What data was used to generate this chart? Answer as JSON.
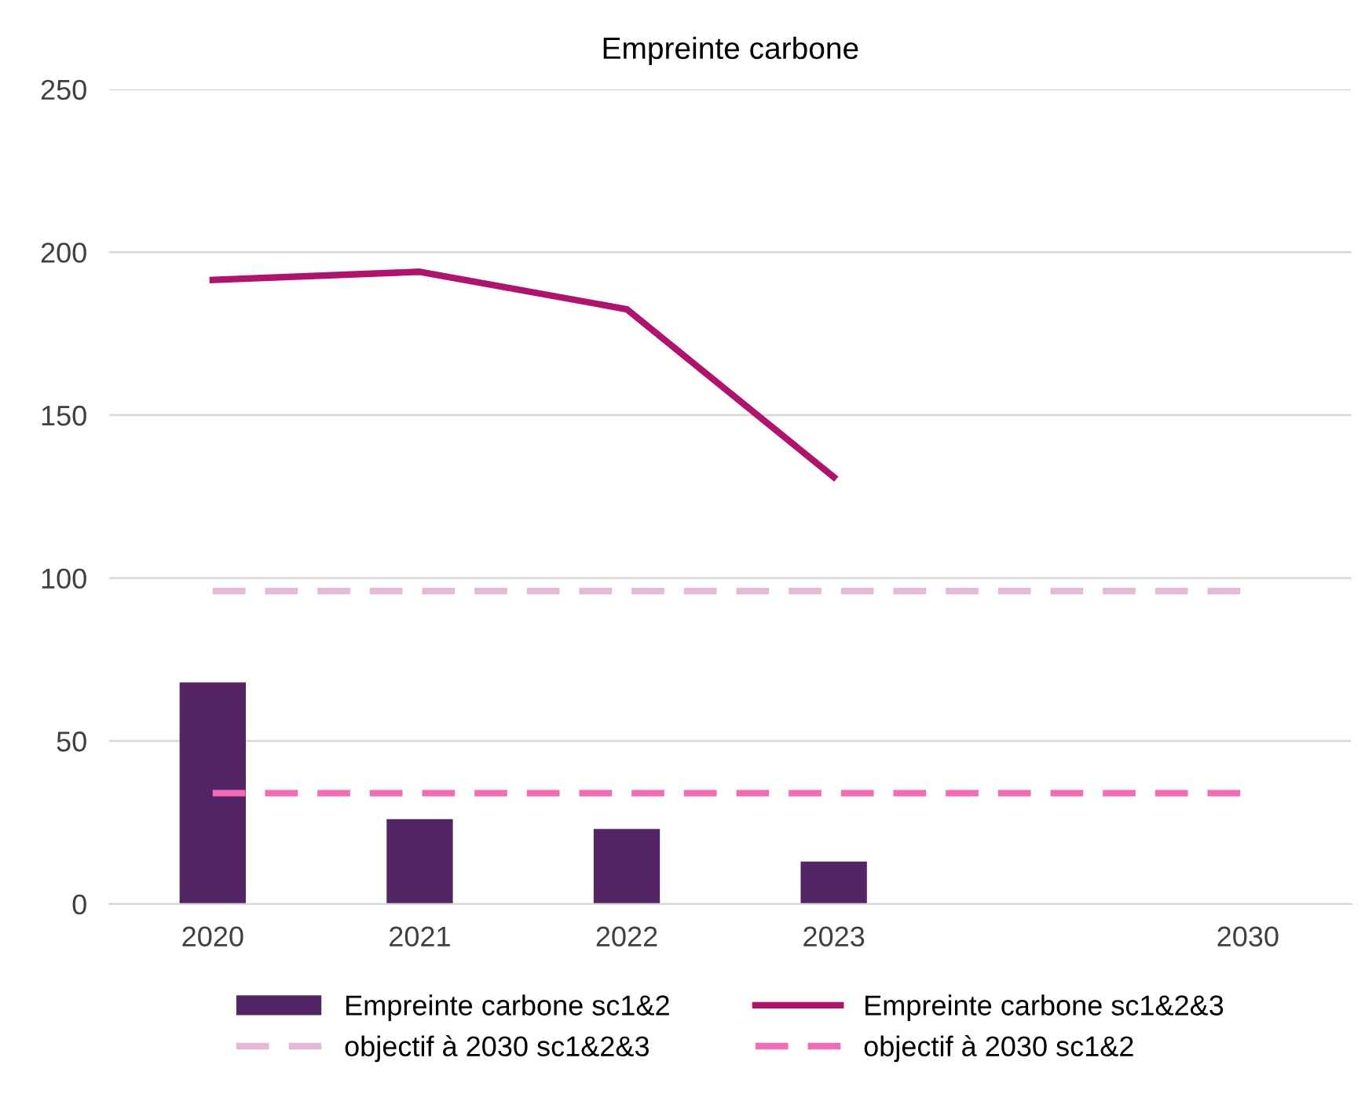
{
  "chart_data": {
    "type": "bar",
    "title": "Empreinte carbone",
    "categories": [
      "2020",
      "2021",
      "2022",
      "2023",
      null,
      "2030"
    ],
    "series": [
      {
        "name": "Empreinte carbone sc1&2",
        "color": "#532565",
        "values": [
          68,
          26,
          23,
          13,
          null,
          null
        ]
      },
      {
        "name": "Empreinte carbone sc1&2&3",
        "type": "line",
        "color": "#b0136e",
        "line_style": "solid",
        "values": [
          191.5,
          194,
          182.5,
          131,
          null,
          null
        ]
      },
      {
        "name": "objectif à 2030 sc1&2&3",
        "type": "line",
        "color": "#e3b8d8",
        "line_style": "dashed",
        "values": [
          96,
          96,
          96,
          96,
          96,
          96
        ]
      },
      {
        "name": "objectif à 2030 sc1&2",
        "type": "line",
        "color": "#f26bb5",
        "line_style": "dashed",
        "values": [
          34,
          34,
          34,
          34,
          34,
          34
        ]
      }
    ],
    "ylim": [
      0,
      250
    ],
    "yticks": [
      0,
      50,
      100,
      150,
      200,
      250
    ],
    "grid": "y",
    "legend": "bottom"
  }
}
